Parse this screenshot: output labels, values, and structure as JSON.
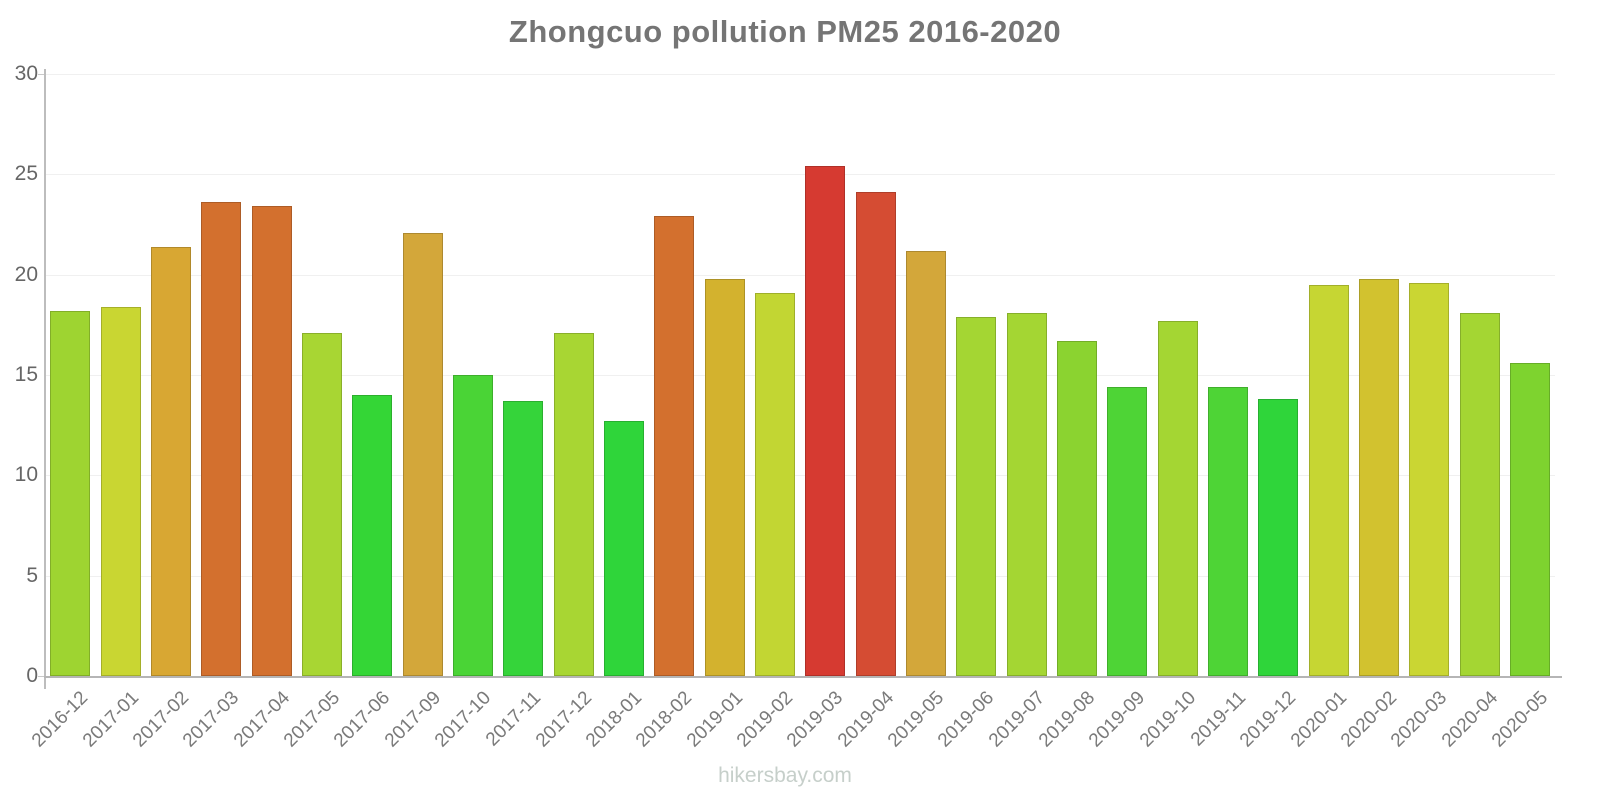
{
  "page": {
    "watermark": "hikersbay.com"
  },
  "chart_data": {
    "type": "bar",
    "title": "Zhongcuo pollution PM25 2016-2020",
    "xlabel": "",
    "ylabel": "",
    "ylim": [
      0,
      30
    ],
    "yticks": [
      0,
      5,
      10,
      15,
      20,
      25,
      30
    ],
    "grid": "horizontal",
    "legend": "none",
    "categories": [
      "2016-12",
      "2017-01",
      "2017-02",
      "2017-03",
      "2017-04",
      "2017-05",
      "2017-06",
      "2017-09",
      "2017-10",
      "2017-11",
      "2017-12",
      "2018-01",
      "2018-02",
      "2019-01",
      "2019-02",
      "2019-03",
      "2019-04",
      "2019-05",
      "2019-06",
      "2019-07",
      "2019-08",
      "2019-09",
      "2019-10",
      "2019-11",
      "2019-12",
      "2020-01",
      "2020-02",
      "2020-03",
      "2020-04",
      "2020-05"
    ],
    "values": [
      18.2,
      18.4,
      21.4,
      23.6,
      23.4,
      17.1,
      14.0,
      22.1,
      15.0,
      13.7,
      17.1,
      12.7,
      22.9,
      19.8,
      19.1,
      25.4,
      24.1,
      21.2,
      17.9,
      18.1,
      16.7,
      14.4,
      17.7,
      14.4,
      13.8,
      19.5,
      19.8,
      19.6,
      18.1,
      15.6
    ],
    "bar_colors": [
      "#9ed431",
      "#c9d632",
      "#d8a733",
      "#d3702e",
      "#d3702e",
      "#a8d633",
      "#34d636",
      "#d3a73a",
      "#4ad436",
      "#35d43a",
      "#a8d633",
      "#2fd53a",
      "#d3702e",
      "#d3b22e",
      "#c2d633",
      "#d63a31",
      "#d54c33",
      "#d3a73a",
      "#a4d633",
      "#a4d633",
      "#8bd330",
      "#4ed436",
      "#a4d633",
      "#4ed436",
      "#2fd53a",
      "#c6d633",
      "#d2c22f",
      "#cad633",
      "#a4d633",
      "#7ed32f"
    ],
    "colors": {
      "title": "#757575",
      "axis_labels": "#666666",
      "x_axis_labels": "#7a7a7a",
      "axis_line": "#b8b8b8",
      "gridline": "#f0f0f0",
      "watermark": "#c6cfca"
    }
  }
}
